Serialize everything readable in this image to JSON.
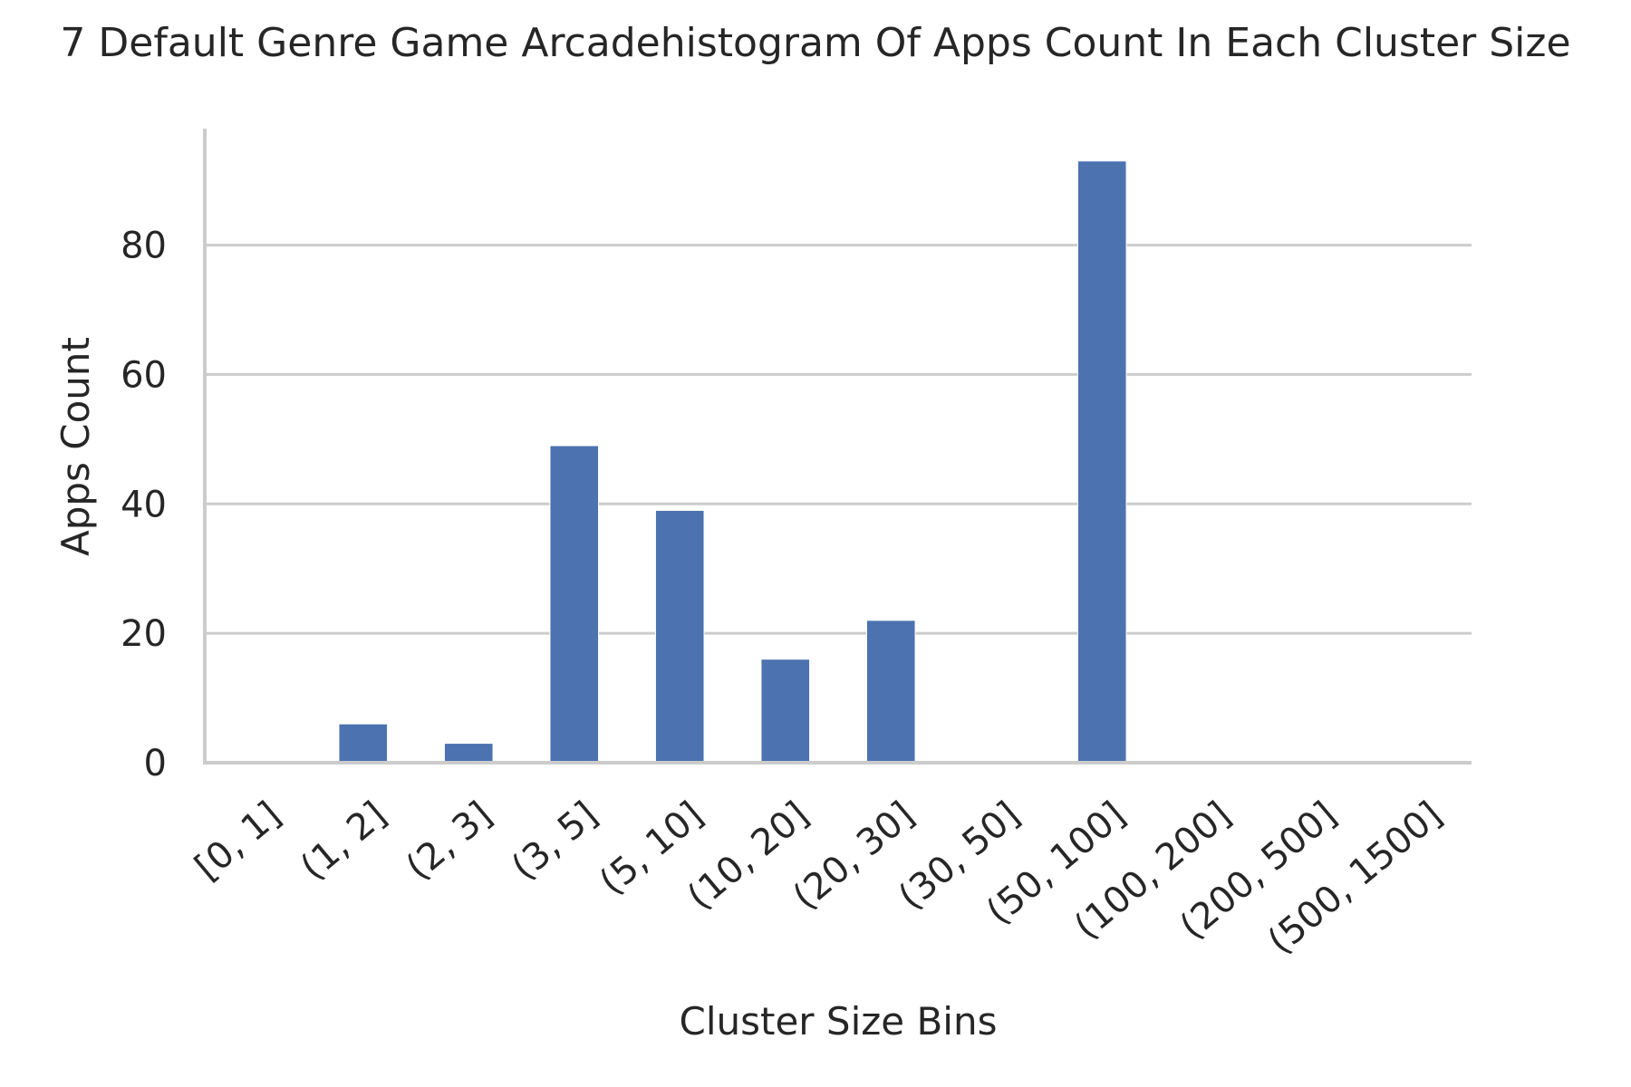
{
  "chart_data": {
    "type": "bar",
    "title": "7 Default Genre Game Arcadehistogram Of Apps Count In Each Cluster Size",
    "xlabel": "Cluster Size Bins",
    "ylabel": "Apps Count",
    "categories": [
      "[0, 1]",
      "(1, 2]",
      "(2, 3]",
      "(3, 5]",
      "(5, 10]",
      "(10, 20]",
      "(20, 30]",
      "(30, 50]",
      "(50, 100]",
      "(100, 200]",
      "(200, 500]",
      "(500, 1500]"
    ],
    "values": [
      0,
      6,
      3,
      49,
      39,
      16,
      22,
      0,
      93,
      0,
      0,
      0
    ],
    "yticks": [
      0,
      20,
      40,
      60,
      80
    ],
    "ylim": [
      0,
      98
    ],
    "grid": true,
    "bar_color": "#4c72b0"
  }
}
